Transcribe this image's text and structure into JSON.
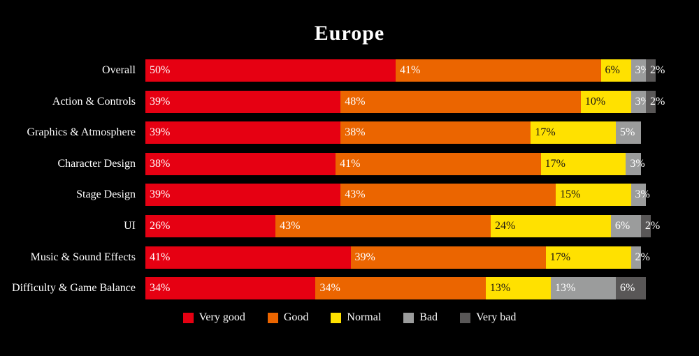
{
  "chart_data": {
    "type": "bar",
    "orientation": "horizontal-stacked",
    "title": "Europe",
    "background": "#000000",
    "value_suffix": "%",
    "xlim": [
      0,
      100
    ],
    "legend_position": "bottom",
    "categories": [
      "Overall",
      "Action & Controls",
      "Graphics & Atmosphere",
      "Character Design",
      "Stage Design",
      "UI",
      "Music & Sound Effects",
      "Difficulty & Game Balance"
    ],
    "series": [
      {
        "name": "Very good",
        "color": "#e60012",
        "label_color": "#ffffff",
        "values": [
          50,
          39,
          39,
          38,
          39,
          26,
          41,
          34
        ]
      },
      {
        "name": "Good",
        "color": "#eb6500",
        "label_color": "#ffffff",
        "values": [
          41,
          48,
          38,
          41,
          43,
          43,
          39,
          34
        ]
      },
      {
        "name": "Normal",
        "color": "#ffe100",
        "label_color": "#1a1414",
        "values": [
          6,
          10,
          17,
          17,
          15,
          24,
          17,
          13
        ]
      },
      {
        "name": "Bad",
        "color": "#9b9c9c",
        "label_color": "#ffffff",
        "values": [
          3,
          3,
          5,
          3,
          3,
          6,
          2,
          13
        ]
      },
      {
        "name": "Very bad",
        "color": "#595757",
        "label_color": "#ffffff",
        "values": [
          2,
          2,
          0,
          0,
          0,
          2,
          0,
          6
        ]
      }
    ]
  }
}
